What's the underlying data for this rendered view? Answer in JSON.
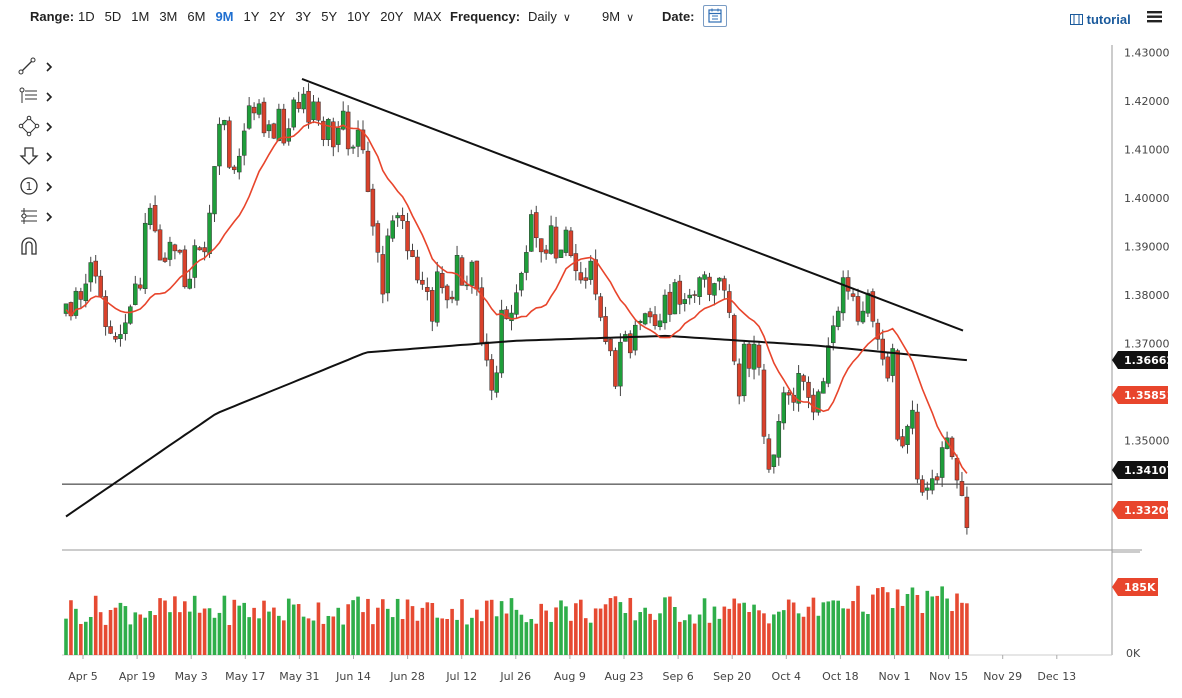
{
  "toolbar": {
    "range_label": "Range:",
    "ranges": [
      "1D",
      "5D",
      "1M",
      "3M",
      "6M",
      "9M",
      "1Y",
      "2Y",
      "3Y",
      "5Y",
      "10Y",
      "20Y",
      "MAX"
    ],
    "active_range": "9M",
    "frequency_label": "Frequency:",
    "frequency_value": "Daily",
    "period_value": "9M",
    "date_label": "Date:",
    "tutorial_label": "tutorial",
    "accent_color": "#1f6fd0"
  },
  "tools": [
    "line-tool-icon",
    "fib-tool-icon",
    "shape-tool-icon",
    "arrow-tool-icon",
    "annotation-tool-icon",
    "measure-tool-icon",
    "magnet-icon"
  ],
  "chart_data": {
    "type": "candlestick",
    "y_ticks": [
      "1.43000",
      "1.42000",
      "1.41000",
      "1.40000",
      "1.39000",
      "1.38000",
      "1.37000",
      "1.35000"
    ],
    "ylim": [
      1.3275,
      1.4315
    ],
    "x_ticks": [
      "Apr 5",
      "Apr 19",
      "May 3",
      "May 17",
      "May 31",
      "Jun 14",
      "Jun 28",
      "Jul 12",
      "Jul 26",
      "Aug 9",
      "Aug 23",
      "Sep 6",
      "Sep 20",
      "Oct 4",
      "Oct 18",
      "Nov 1",
      "Nov 15",
      "Nov 29",
      "Dec 13"
    ],
    "price_tags": [
      {
        "value": "1.36662",
        "role": "sma200",
        "color": "#111111",
        "text": "#ffffff"
      },
      {
        "value": "1.35851",
        "role": "sma50",
        "color": "#e8452c",
        "text": "#ffffff"
      },
      {
        "value": "1.34107",
        "role": "horizontal-line",
        "color": "#111111",
        "text": "#ffffff"
      },
      {
        "value": "1.33209",
        "role": "last-price",
        "color": "#e8452c",
        "text": "#ffffff"
      }
    ],
    "volume_tag": "185K",
    "volume_zero_label": "0K",
    "horizontal_line": 1.34107,
    "trendline": {
      "start": [
        1.4245
      ],
      "end": [
        1.3727
      ]
    },
    "closes": [
      1.3782,
      1.3757,
      1.3808,
      1.3791,
      1.3823,
      1.3867,
      1.3839,
      1.3797,
      1.3735,
      1.3721,
      1.3709,
      1.3719,
      1.3743,
      1.3776,
      1.3823,
      1.3814,
      1.3948,
      1.3979,
      1.3932,
      1.3872,
      1.3869,
      1.3909,
      1.3891,
      1.3888,
      1.3817,
      1.3833,
      1.3902,
      1.3893,
      1.3889,
      1.3969,
      1.4065,
      1.4152,
      1.416,
      1.4063,
      1.4058,
      1.4086,
      1.4138,
      1.419,
      1.4175,
      1.4194,
      1.4134,
      1.4151,
      1.4123,
      1.4183,
      1.4113,
      1.4143,
      1.4202,
      1.4184,
      1.4214,
      1.4156,
      1.4198,
      1.416,
      1.412,
      1.4162,
      1.4105,
      1.4144,
      1.4179,
      1.4101,
      1.4105,
      1.414,
      1.4099,
      1.4013,
      1.3942,
      1.3888,
      1.3802,
      1.3922,
      1.3953,
      1.3964,
      1.3953,
      1.3891,
      1.3879,
      1.3831,
      1.3822,
      1.3807,
      1.3746,
      1.3848,
      1.3815,
      1.379,
      1.3792,
      1.3882,
      1.382,
      1.3821,
      1.3868,
      1.3812,
      1.3702,
      1.3666,
      1.3604,
      1.364,
      1.3769,
      1.3751,
      1.3763,
      1.3805,
      1.3845,
      1.3888,
      1.3966,
      1.3918,
      1.3889,
      1.3886,
      1.3943,
      1.3876,
      1.3893,
      1.3934,
      1.3881,
      1.385,
      1.3831,
      1.383,
      1.387,
      1.3802,
      1.3754,
      1.3704,
      1.3685,
      1.3612,
      1.3703,
      1.3719,
      1.3681,
      1.3738,
      1.3746,
      1.3762,
      1.3755,
      1.3737,
      1.3747,
      1.38,
      1.376,
      1.3826,
      1.3781,
      1.3791,
      1.38,
      1.3799,
      1.3836,
      1.3842,
      1.3801,
      1.3824,
      1.3835,
      1.381,
      1.3764,
      1.3664,
      1.3592,
      1.3699,
      1.3649,
      1.3699,
      1.3651,
      1.3509,
      1.3441,
      1.3471,
      1.354,
      1.3599,
      1.3594,
      1.3579,
      1.3639,
      1.3622,
      1.3589,
      1.3559,
      1.3601,
      1.3622,
      1.3696,
      1.3737,
      1.3767,
      1.3836,
      1.3808,
      1.3797,
      1.3746,
      1.3767,
      1.3804,
      1.3746,
      1.3709,
      1.3668,
      1.3629,
      1.369,
      1.3503,
      1.3489,
      1.353,
      1.3563,
      1.3421,
      1.3394,
      1.3403,
      1.3422,
      1.3419,
      1.3486,
      1.3506,
      1.3467,
      1.3419,
      1.3387,
      1.3321
    ],
    "volume_scale_label": "185K"
  }
}
